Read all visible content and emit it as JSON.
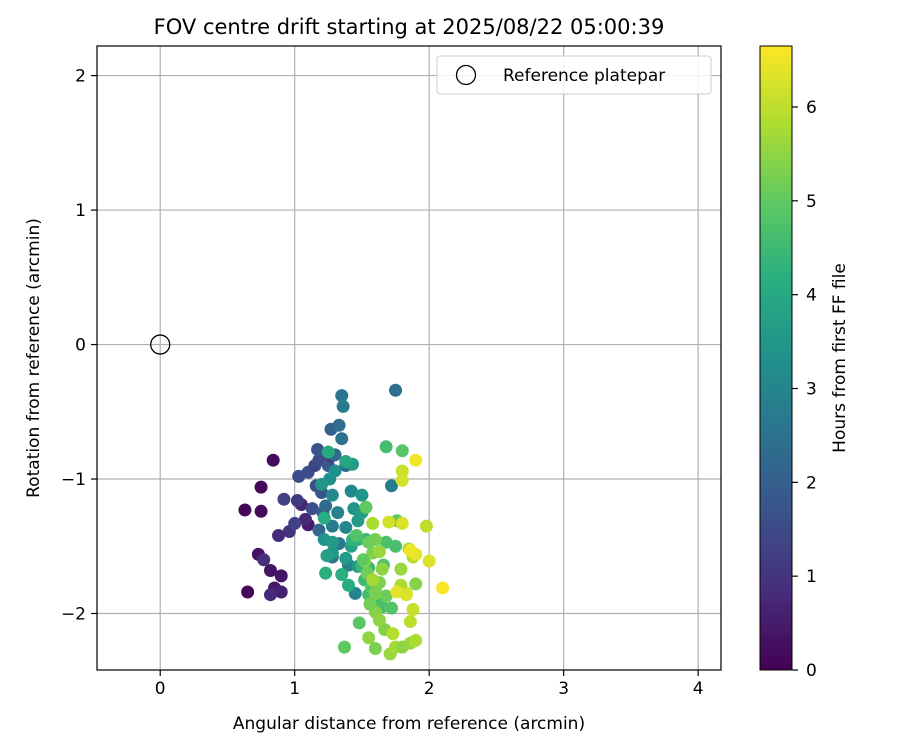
{
  "chart_data": {
    "type": "scatter",
    "title": "FOV centre drift starting at 2025/08/22 05:00:39",
    "xlabel": "Angular distance from reference (arcmin)",
    "ylabel": "Rotation from reference (arcmin)",
    "xlim": [
      -0.47,
      4.17
    ],
    "ylim": [
      -2.42,
      2.22
    ],
    "xticks": [
      0,
      1,
      2,
      3,
      4
    ],
    "yticks": [
      -2,
      -1,
      0,
      1,
      2
    ],
    "xtick_labels": [
      "0",
      "1",
      "2",
      "3",
      "4"
    ],
    "ytick_labels": [
      "−2",
      "−1",
      "0",
      "1",
      "2"
    ],
    "grid": true,
    "legend": {
      "placement": "top-right",
      "entries": [
        {
          "label": "Reference platepar",
          "marker": "open-circle"
        }
      ]
    },
    "reference_point": {
      "x": 0,
      "y": 0
    },
    "colorbar": {
      "label": "Hours from first FF file",
      "colormap": "viridis",
      "range": [
        0,
        6.65
      ],
      "ticks": [
        0,
        1,
        2,
        3,
        4,
        5,
        6
      ],
      "tick_labels": [
        "0",
        "1",
        "2",
        "3",
        "4",
        "5",
        "6"
      ]
    },
    "points": [
      [
        0.65,
        -1.84,
        0.1
      ],
      [
        0.63,
        -1.23,
        0.1
      ],
      [
        0.75,
        -1.06,
        0.15
      ],
      [
        0.75,
        -1.24,
        0.2
      ],
      [
        0.84,
        -0.86,
        0.2
      ],
      [
        0.73,
        -1.56,
        0.3
      ],
      [
        0.82,
        -1.68,
        0.35
      ],
      [
        0.9,
        -1.72,
        0.4
      ],
      [
        0.85,
        -1.81,
        0.45
      ],
      [
        0.9,
        -1.84,
        0.6
      ],
      [
        1.1,
        -1.34,
        0.5
      ],
      [
        0.82,
        -1.86,
        0.8
      ],
      [
        0.77,
        -1.6,
        0.9
      ],
      [
        0.88,
        -1.42,
        0.8
      ],
      [
        0.96,
        -1.39,
        0.95
      ],
      [
        1.05,
        -1.19,
        0.7
      ],
      [
        1.08,
        -1.3,
        0.75
      ],
      [
        1.02,
        -1.16,
        1.1
      ],
      [
        0.92,
        -1.15,
        1.3
      ],
      [
        1.0,
        -1.33,
        1.3
      ],
      [
        1.03,
        -0.98,
        1.5
      ],
      [
        1.1,
        -0.95,
        1.6
      ],
      [
        1.15,
        -0.9,
        1.4
      ],
      [
        1.18,
        -0.86,
        1.45
      ],
      [
        1.16,
        -1.05,
        1.6
      ],
      [
        1.17,
        -0.78,
        1.7
      ],
      [
        1.13,
        -1.22,
        1.6
      ],
      [
        1.2,
        -1.1,
        1.7
      ],
      [
        1.25,
        -0.9,
        1.8
      ],
      [
        1.27,
        -0.83,
        1.2
      ],
      [
        1.21,
        -1.25,
        1.9
      ],
      [
        1.27,
        -0.63,
        2.1
      ],
      [
        1.33,
        -0.6,
        2.4
      ],
      [
        1.35,
        -0.7,
        2.5
      ],
      [
        1.35,
        -0.38,
        2.6
      ],
      [
        1.36,
        -0.46,
        2.7
      ],
      [
        1.3,
        -0.82,
        2.3
      ],
      [
        1.38,
        -0.9,
        2.4
      ],
      [
        1.18,
        -1.38,
        2.2
      ],
      [
        1.23,
        -1.2,
        2.3
      ],
      [
        1.28,
        -1.58,
        2.5
      ],
      [
        1.33,
        -1.48,
        2.6
      ],
      [
        1.28,
        -1.35,
        2.7
      ],
      [
        1.75,
        -0.34,
        2.4
      ],
      [
        1.72,
        -1.05,
        2.8
      ],
      [
        1.32,
        -1.25,
        2.9
      ],
      [
        1.38,
        -1.36,
        3.0
      ],
      [
        1.4,
        -1.64,
        2.9
      ],
      [
        1.45,
        -1.85,
        3.0
      ],
      [
        1.42,
        -1.09,
        3.1
      ],
      [
        1.28,
        -1.12,
        3.1
      ],
      [
        1.26,
        -1.0,
        3.3
      ],
      [
        1.2,
        -1.04,
        3.5
      ],
      [
        1.3,
        -0.94,
        3.3
      ],
      [
        1.22,
        -1.45,
        3.4
      ],
      [
        1.28,
        -1.55,
        3.5
      ],
      [
        1.24,
        -1.57,
        3.7
      ],
      [
        1.28,
        -1.47,
        3.6
      ],
      [
        1.38,
        -1.59,
        3.6
      ],
      [
        1.42,
        -1.5,
        3.8
      ],
      [
        1.47,
        -1.65,
        3.5
      ],
      [
        1.44,
        -1.22,
        3.4
      ],
      [
        1.47,
        -1.31,
        3.6
      ],
      [
        1.5,
        -1.25,
        3.7
      ],
      [
        1.5,
        -1.12,
        3.5
      ],
      [
        1.43,
        -0.89,
        3.6
      ],
      [
        1.38,
        -0.87,
        3.9
      ],
      [
        1.25,
        -0.8,
        4.0
      ],
      [
        1.22,
        -1.29,
        4.1
      ],
      [
        1.23,
        -1.7,
        4.2
      ],
      [
        1.35,
        -1.71,
        4.2
      ],
      [
        1.4,
        -1.79,
        4.1
      ],
      [
        1.43,
        -1.45,
        4.3
      ],
      [
        1.47,
        -1.45,
        4.3
      ],
      [
        1.5,
        -1.65,
        4.4
      ],
      [
        1.53,
        -1.45,
        4.4
      ],
      [
        1.55,
        -1.66,
        4.5
      ],
      [
        1.55,
        -1.86,
        4.6
      ],
      [
        1.52,
        -1.75,
        4.5
      ],
      [
        1.57,
        -1.8,
        4.8
      ],
      [
        1.6,
        -1.82,
        4.9
      ],
      [
        1.62,
        -1.88,
        4.6
      ],
      [
        1.66,
        -1.64,
        4.8
      ],
      [
        1.68,
        -1.47,
        4.7
      ],
      [
        1.68,
        -0.76,
        4.6
      ],
      [
        1.8,
        -0.79,
        4.9
      ],
      [
        1.75,
        -1.5,
        4.7
      ],
      [
        1.65,
        -1.95,
        4.7
      ],
      [
        1.72,
        -1.96,
        4.8
      ],
      [
        1.68,
        -1.87,
        5.1
      ],
      [
        1.76,
        -1.31,
        5.0
      ],
      [
        1.53,
        -1.21,
        5.0
      ],
      [
        1.55,
        -1.47,
        5.1
      ],
      [
        1.6,
        -1.45,
        5.2
      ],
      [
        1.58,
        -1.55,
        5.3
      ],
      [
        1.6,
        -1.85,
        5.3
      ],
      [
        1.56,
        -1.93,
        5.4
      ],
      [
        1.6,
        -1.99,
        5.4
      ],
      [
        1.63,
        -2.05,
        5.5
      ],
      [
        1.67,
        -2.12,
        5.4
      ],
      [
        1.55,
        -2.18,
        5.5
      ],
      [
        1.6,
        -2.26,
        5.3
      ],
      [
        1.71,
        -2.3,
        5.6
      ],
      [
        1.75,
        -2.25,
        5.7
      ],
      [
        1.8,
        -2.25,
        5.5
      ],
      [
        1.86,
        -2.22,
        5.6
      ],
      [
        1.9,
        -2.2,
        5.8
      ],
      [
        1.73,
        -2.15,
        5.9
      ],
      [
        1.37,
        -2.25,
        5.0
      ],
      [
        1.48,
        -2.07,
        4.9
      ],
      [
        1.79,
        -1.67,
        5.6
      ],
      [
        1.85,
        -1.52,
        5.7
      ],
      [
        1.88,
        -1.58,
        5.9
      ],
      [
        1.79,
        -1.79,
        5.8
      ],
      [
        1.83,
        -1.85,
        5.9
      ],
      [
        1.86,
        -2.06,
        6.0
      ],
      [
        1.88,
        -1.97,
        6.1
      ],
      [
        1.9,
        -1.78,
        5.4
      ],
      [
        1.7,
        -1.32,
        6.2
      ],
      [
        1.8,
        -0.94,
        6.1
      ],
      [
        1.8,
        -1.01,
        6.2
      ],
      [
        1.9,
        -0.86,
        6.5
      ],
      [
        1.8,
        -1.33,
        6.3
      ],
      [
        1.98,
        -1.35,
        6.0
      ],
      [
        2.0,
        -1.61,
        6.3
      ],
      [
        1.9,
        -1.56,
        6.4
      ],
      [
        1.86,
        -1.53,
        6.5
      ],
      [
        2.1,
        -1.81,
        6.6
      ],
      [
        1.76,
        -1.84,
        6.4
      ],
      [
        1.83,
        -1.86,
        6.3
      ],
      [
        1.58,
        -1.33,
        5.8
      ],
      [
        1.63,
        -1.54,
        5.6
      ],
      [
        1.52,
        -1.61,
        5.5
      ],
      [
        1.54,
        -1.7,
        5.2
      ],
      [
        1.63,
        -1.77,
        5.3
      ],
      [
        1.58,
        -1.75,
        5.7
      ],
      [
        1.51,
        -1.6,
        5.0
      ],
      [
        1.46,
        -1.42,
        4.8
      ],
      [
        1.56,
        -1.93,
        5.2
      ],
      [
        1.65,
        -1.67,
        5.5
      ]
    ]
  }
}
